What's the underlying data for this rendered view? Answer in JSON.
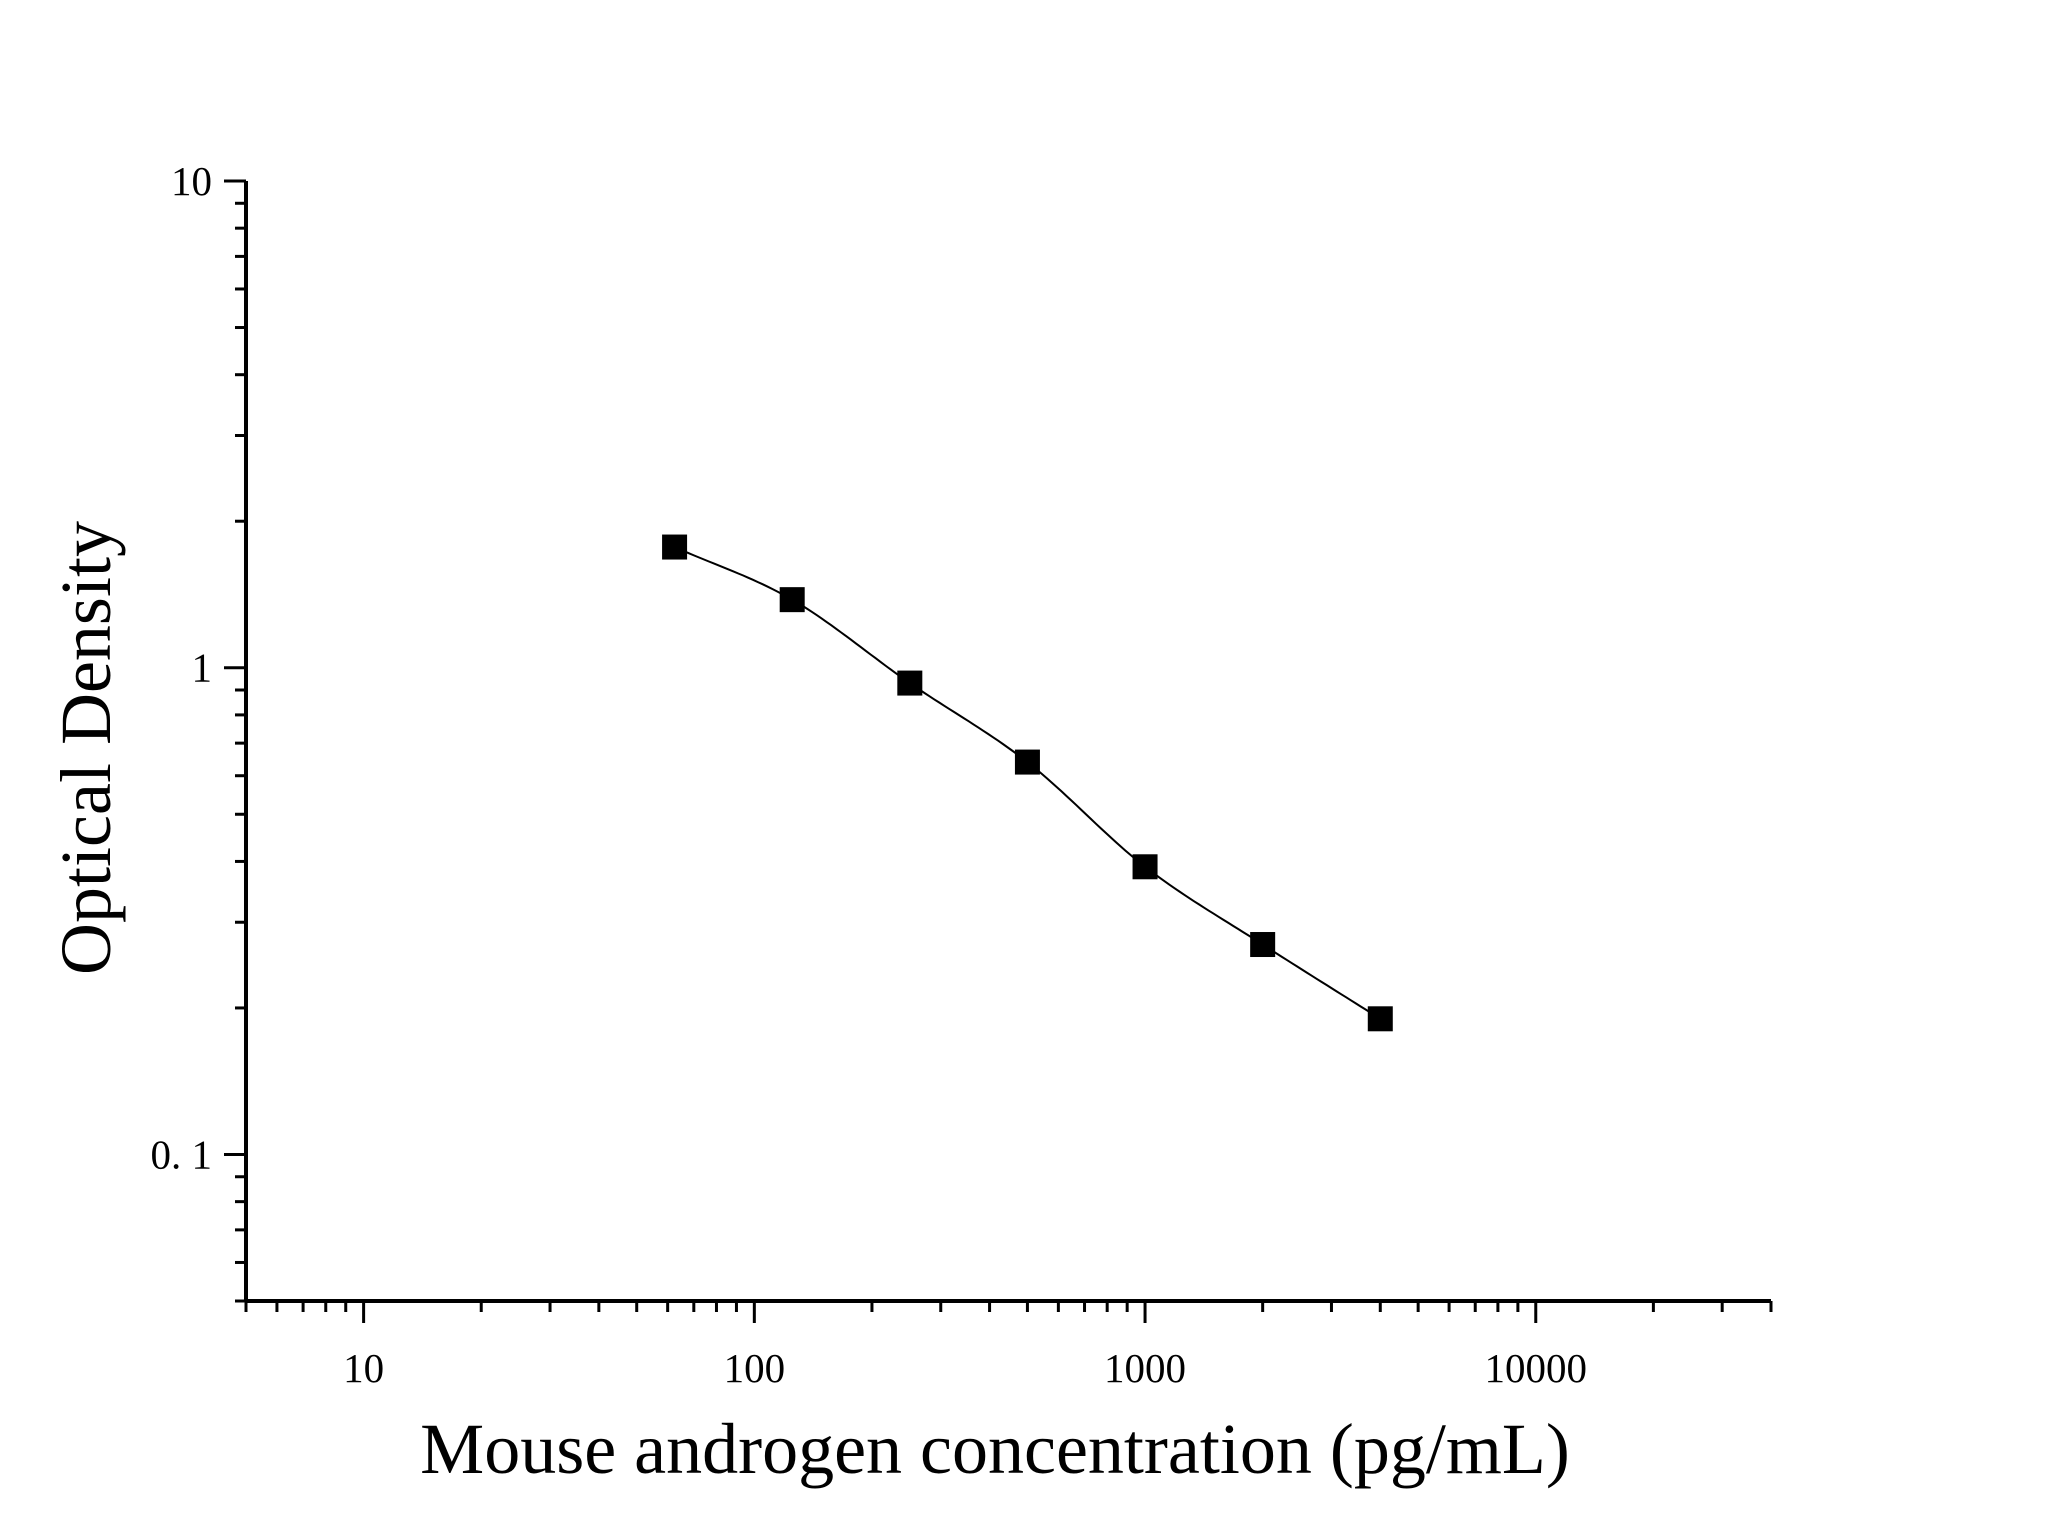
{
  "chart_data": {
    "type": "scatter",
    "title": "",
    "xlabel": "Mouse androgen concentration (pg/mL)",
    "ylabel": "Optical Density",
    "x_scale": "log",
    "y_scale": "log",
    "xlim": [
      5,
      40000
    ],
    "ylim": [
      0.05,
      10
    ],
    "x_ticks": [
      {
        "value": 10,
        "label": "10"
      },
      {
        "value": 100,
        "label": "100"
      },
      {
        "value": 1000,
        "label": "1000"
      },
      {
        "value": 10000,
        "label": "10000"
      }
    ],
    "y_ticks": [
      {
        "value": 0.1,
        "label": "0. 1"
      },
      {
        "value": 1,
        "label": "1"
      },
      {
        "value": 10,
        "label": "10"
      }
    ],
    "grid": false,
    "legend": "none",
    "series": [
      {
        "marker": "square",
        "fit_line": true,
        "color": "#000000",
        "points": [
          {
            "x": 62.5,
            "y": 1.77
          },
          {
            "x": 125,
            "y": 1.38
          },
          {
            "x": 250,
            "y": 0.93
          },
          {
            "x": 500,
            "y": 0.64
          },
          {
            "x": 1000,
            "y": 0.39
          },
          {
            "x": 2000,
            "y": 0.27
          },
          {
            "x": 4000,
            "y": 0.19
          }
        ]
      }
    ]
  }
}
